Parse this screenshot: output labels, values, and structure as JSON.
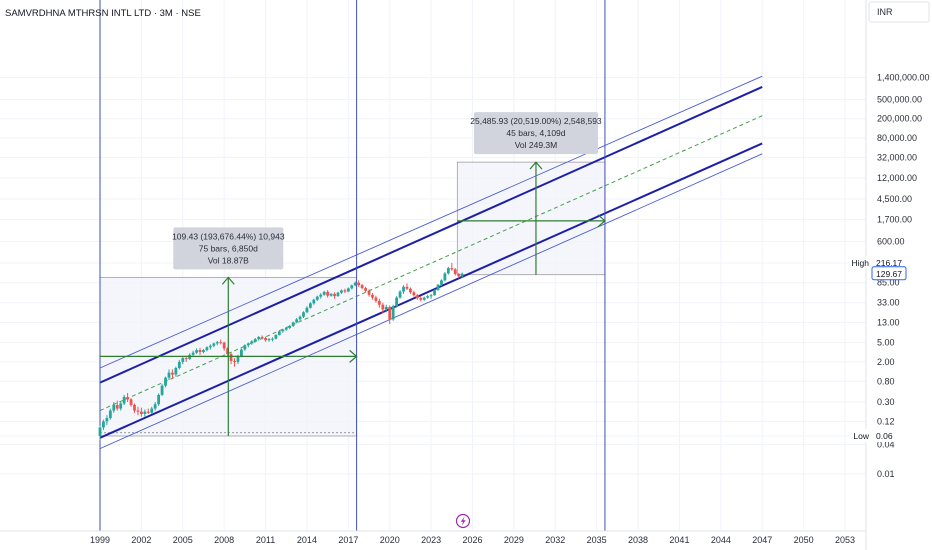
{
  "header": {
    "title": "SAMVRDHNA MTHRSN INTL LTD · 3M · NSE",
    "currency": "INR"
  },
  "colors": {
    "up": "#26a69a",
    "down": "#ef5350",
    "channel": "#1e1fa8",
    "channel_outer": "#4b5bd6",
    "measure": "#2e7d32",
    "midline": "#43a047",
    "vertical_line": "#3f51b5",
    "box_fill": "#f0f3fa",
    "label_bg": "#d1d4dc"
  },
  "icons": {
    "bolt": "lightning-icon"
  },
  "chart_data": {
    "type": "candlestick",
    "title": "SAMVRDHNA MTHRSN INTL LTD · 3M · NSE",
    "y_scale": "log",
    "y_axis_ticks": [
      "1,400,000.00",
      "500,000.00",
      "200,000.00",
      "80,000.00",
      "32,000.00",
      "12,000.00",
      "4,500.00",
      "1,700.00",
      "600.00",
      "216.17",
      "85.00",
      "33.00",
      "13.00",
      "5.00",
      "2.00",
      "0.80",
      "0.30",
      "0.12",
      "0.06",
      "0.04",
      "0.01"
    ],
    "y_tick_values": [
      1400000,
      500000,
      200000,
      80000,
      32000,
      12000,
      4500,
      1700,
      600,
      216.17,
      85,
      33,
      13,
      5,
      2,
      0.8,
      0.3,
      0.12,
      0.06,
      0.04,
      0.01
    ],
    "x_axis_ticks": [
      "1999",
      "2002",
      "2005",
      "2008",
      "2011",
      "2014",
      "2017",
      "2020",
      "2023",
      "2026",
      "2029",
      "2032",
      "2035",
      "2038",
      "2041",
      "2044",
      "2047",
      "2050",
      "2053"
    ],
    "x_tick_values": [
      1999,
      2002,
      2005,
      2008,
      2011,
      2014,
      2017,
      2020,
      2023,
      2026,
      2029,
      2032,
      2035,
      2038,
      2041,
      2044,
      2047,
      2050,
      2053
    ],
    "x_range": [
      1999,
      2053
    ],
    "price_tags": [
      {
        "label": "High",
        "value": "216.17"
      },
      {
        "label": "",
        "value": "129.67"
      },
      {
        "label": "Low",
        "value": "0.06"
      }
    ],
    "current_price": 129.67,
    "high": 216.17,
    "low": 0.06,
    "vertical_lines": [
      1999,
      2017.6,
      2035.6
    ],
    "candles": [
      [
        1999.0,
        0.06,
        0.1,
        0.05,
        0.09
      ],
      [
        1999.25,
        0.09,
        0.13,
        0.08,
        0.12
      ],
      [
        1999.5,
        0.12,
        0.16,
        0.1,
        0.14
      ],
      [
        1999.75,
        0.14,
        0.22,
        0.13,
        0.2
      ],
      [
        2000.0,
        0.2,
        0.3,
        0.18,
        0.26
      ],
      [
        2000.25,
        0.26,
        0.32,
        0.2,
        0.22
      ],
      [
        2000.5,
        0.22,
        0.3,
        0.2,
        0.28
      ],
      [
        2000.75,
        0.28,
        0.42,
        0.26,
        0.38
      ],
      [
        2001.0,
        0.38,
        0.46,
        0.3,
        0.34
      ],
      [
        2001.25,
        0.34,
        0.36,
        0.24,
        0.26
      ],
      [
        2001.5,
        0.26,
        0.28,
        0.18,
        0.2
      ],
      [
        2001.75,
        0.2,
        0.24,
        0.16,
        0.19
      ],
      [
        2002.0,
        0.19,
        0.23,
        0.15,
        0.17
      ],
      [
        2002.25,
        0.17,
        0.21,
        0.15,
        0.19
      ],
      [
        2002.5,
        0.19,
        0.22,
        0.17,
        0.18
      ],
      [
        2002.75,
        0.18,
        0.24,
        0.17,
        0.22
      ],
      [
        2003.0,
        0.22,
        0.3,
        0.2,
        0.27
      ],
      [
        2003.25,
        0.27,
        0.45,
        0.25,
        0.42
      ],
      [
        2003.5,
        0.42,
        0.7,
        0.4,
        0.65
      ],
      [
        2003.75,
        0.65,
        1.0,
        0.6,
        0.95
      ],
      [
        2004.0,
        0.95,
        1.4,
        0.85,
        1.2
      ],
      [
        2004.25,
        1.2,
        1.4,
        0.9,
        1.1
      ],
      [
        2004.5,
        1.1,
        1.6,
        1.0,
        1.5
      ],
      [
        2004.75,
        1.5,
        2.2,
        1.4,
        2.0
      ],
      [
        2005.0,
        2.0,
        2.6,
        1.8,
        2.4
      ],
      [
        2005.25,
        2.4,
        2.7,
        2.0,
        2.3
      ],
      [
        2005.5,
        2.3,
        3.0,
        2.2,
        2.8
      ],
      [
        2005.75,
        2.8,
        3.4,
        2.6,
        3.1
      ],
      [
        2006.0,
        3.1,
        3.8,
        2.9,
        3.5
      ],
      [
        2006.25,
        3.5,
        3.9,
        2.8,
        3.2
      ],
      [
        2006.5,
        3.2,
        3.7,
        3.0,
        3.5
      ],
      [
        2006.75,
        3.5,
        4.2,
        3.3,
        4.0
      ],
      [
        2007.0,
        4.0,
        4.6,
        3.6,
        4.3
      ],
      [
        2007.25,
        4.3,
        5.0,
        4.0,
        4.8
      ],
      [
        2007.5,
        4.8,
        5.4,
        4.4,
        5.1
      ],
      [
        2007.75,
        5.1,
        5.8,
        4.6,
        5.0
      ],
      [
        2008.0,
        5.0,
        5.2,
        3.4,
        3.8
      ],
      [
        2008.25,
        3.8,
        4.0,
        2.6,
        2.9
      ],
      [
        2008.5,
        2.9,
        3.1,
        1.8,
        2.1
      ],
      [
        2008.75,
        2.1,
        2.4,
        1.6,
        2.0
      ],
      [
        2009.0,
        2.0,
        2.8,
        1.8,
        2.6
      ],
      [
        2009.25,
        2.6,
        3.8,
        2.5,
        3.6
      ],
      [
        2009.5,
        3.6,
        4.6,
        3.4,
        4.4
      ],
      [
        2009.75,
        4.4,
        5.0,
        4.0,
        4.8
      ],
      [
        2010.0,
        4.8,
        5.6,
        4.5,
        5.3
      ],
      [
        2010.25,
        5.3,
        6.2,
        5.0,
        5.9
      ],
      [
        2010.5,
        5.9,
        6.8,
        5.5,
        6.5
      ],
      [
        2010.75,
        6.5,
        7.0,
        5.8,
        6.2
      ],
      [
        2011.0,
        6.2,
        6.6,
        5.2,
        5.6
      ],
      [
        2011.25,
        5.6,
        6.2,
        5.2,
        5.9
      ],
      [
        2011.5,
        5.9,
        6.4,
        5.3,
        6.0
      ],
      [
        2011.75,
        6.0,
        7.4,
        5.8,
        7.2
      ],
      [
        2012.0,
        7.2,
        8.8,
        7.0,
        8.5
      ],
      [
        2012.25,
        8.5,
        9.6,
        8.0,
        9.2
      ],
      [
        2012.5,
        9.2,
        10.5,
        8.7,
        10.0
      ],
      [
        2012.75,
        10.0,
        11.5,
        9.5,
        11.0
      ],
      [
        2013.0,
        11.0,
        13.5,
        10.5,
        13.0
      ],
      [
        2013.25,
        13.0,
        16.0,
        12.5,
        15.0
      ],
      [
        2013.5,
        15.0,
        18.0,
        14.0,
        17.0
      ],
      [
        2013.75,
        17.0,
        22.0,
        16.0,
        21.0
      ],
      [
        2014.0,
        21.0,
        28.0,
        20.0,
        26.0
      ],
      [
        2014.25,
        26.0,
        34.0,
        25.0,
        32.0
      ],
      [
        2014.5,
        32.0,
        40.0,
        30.0,
        38.0
      ],
      [
        2014.75,
        38.0,
        46.0,
        36.0,
        44.0
      ],
      [
        2015.0,
        44.0,
        52.0,
        40.0,
        48.0
      ],
      [
        2015.25,
        48.0,
        58.0,
        46.0,
        55.0
      ],
      [
        2015.5,
        55.0,
        60.0,
        42.0,
        46.0
      ],
      [
        2015.75,
        46.0,
        52.0,
        44.0,
        50.0
      ],
      [
        2016.0,
        50.0,
        54.0,
        40.0,
        45.0
      ],
      [
        2016.25,
        45.0,
        55.0,
        44.0,
        53.0
      ],
      [
        2016.5,
        53.0,
        62.0,
        50.0,
        59.0
      ],
      [
        2016.75,
        59.0,
        64.0,
        52.0,
        56.0
      ],
      [
        2017.0,
        56.0,
        68.0,
        54.0,
        65.0
      ],
      [
        2017.25,
        65.0,
        78.0,
        62.0,
        75.0
      ],
      [
        2017.5,
        75.0,
        90.0,
        72.0,
        85.0
      ],
      [
        2017.75,
        85.0,
        95.0,
        70.0,
        76.0
      ],
      [
        2018.0,
        76.0,
        80.0,
        62.0,
        66.0
      ],
      [
        2018.25,
        66.0,
        70.0,
        54.0,
        58.0
      ],
      [
        2018.5,
        58.0,
        62.0,
        44.0,
        48.0
      ],
      [
        2018.75,
        48.0,
        52.0,
        38.0,
        42.0
      ],
      [
        2019.0,
        42.0,
        46.0,
        33.0,
        36.0
      ],
      [
        2019.25,
        36.0,
        40.0,
        26.0,
        30.0
      ],
      [
        2019.5,
        30.0,
        33.0,
        20.0,
        24.0
      ],
      [
        2019.75,
        24.0,
        30.0,
        21.0,
        27.0
      ],
      [
        2020.0,
        27.0,
        29.0,
        12.0,
        15.0
      ],
      [
        2020.25,
        15.0,
        30.0,
        14.0,
        28.0
      ],
      [
        2020.5,
        28.0,
        45.0,
        26.0,
        42.0
      ],
      [
        2020.75,
        42.0,
        60.0,
        40.0,
        56.0
      ],
      [
        2021.0,
        56.0,
        75.0,
        50.0,
        70.0
      ],
      [
        2021.25,
        70.0,
        82.0,
        60.0,
        64.0
      ],
      [
        2021.5,
        64.0,
        68.0,
        50.0,
        54.0
      ],
      [
        2021.75,
        54.0,
        58.0,
        44.0,
        47.0
      ],
      [
        2022.0,
        47.0,
        50.0,
        38.0,
        41.0
      ],
      [
        2022.25,
        41.0,
        45.0,
        35.0,
        38.0
      ],
      [
        2022.5,
        38.0,
        44.0,
        36.0,
        42.0
      ],
      [
        2022.75,
        42.0,
        48.0,
        40.0,
        45.0
      ],
      [
        2023.0,
        45.0,
        50.0,
        40.0,
        47.0
      ],
      [
        2023.25,
        47.0,
        62.0,
        46.0,
        60.0
      ],
      [
        2023.5,
        60.0,
        80.0,
        58.0,
        77.0
      ],
      [
        2023.75,
        77.0,
        100.0,
        72.0,
        95.0
      ],
      [
        2024.0,
        95.0,
        140.0,
        90.0,
        132.0
      ],
      [
        2024.25,
        132.0,
        180.0,
        125.0,
        170.0
      ],
      [
        2024.5,
        170.0,
        216.17,
        150.0,
        160.0
      ],
      [
        2024.75,
        160.0,
        170.0,
        120.0,
        128.0
      ],
      [
        2025.0,
        128.0,
        135.0,
        105.0,
        115.0
      ],
      [
        2025.25,
        115.0,
        138.0,
        110.0,
        129.67
      ]
    ],
    "channel": {
      "main_upper": [
        [
          1999.0,
          0.75
        ],
        [
          2047.0,
          900000
        ]
      ],
      "main_lower": [
        [
          1999.0,
          0.055
        ],
        [
          2047.0,
          62000
        ]
      ],
      "outer_upper": [
        [
          1999.0,
          1.5
        ],
        [
          2047.0,
          1500000
        ]
      ],
      "outer_lower": [
        [
          1999.0,
          0.033
        ],
        [
          2047.0,
          38000
        ]
      ],
      "midline": [
        [
          1999.0,
          0.2
        ],
        [
          2047.0,
          230000
        ]
      ]
    },
    "measurements": [
      {
        "box": {
          "x0": 1999.0,
          "x1": 2017.6,
          "y_low": 0.06,
          "y_high": 109.49
        },
        "arrow_vertical": {
          "x": 2008.3,
          "from": 0.06,
          "to": 109.49
        },
        "arrow_horizontal": {
          "y": 2.6,
          "from": 1999.0,
          "to": 2017.6
        },
        "dashed_bottom": 0.07,
        "label_lines": [
          "109.43 (193,676.44%) 10,943",
          "75 bars, 6,850d",
          "Vol 18.87B"
        ]
      },
      {
        "box": {
          "x0": 2024.9,
          "x1": 2035.6,
          "y_low": 124.23,
          "y_high": 25610.16
        },
        "arrow_vertical": {
          "x": 2030.6,
          "from": 124.23,
          "to": 25610.16
        },
        "arrow_horizontal": {
          "y": 1590,
          "from": 2024.9,
          "to": 2035.6
        },
        "label_lines": [
          "25,485.93 (20,519.00%) 2,548,593",
          "45 bars, 4,109d",
          "Vol 249.3M"
        ]
      }
    ]
  }
}
